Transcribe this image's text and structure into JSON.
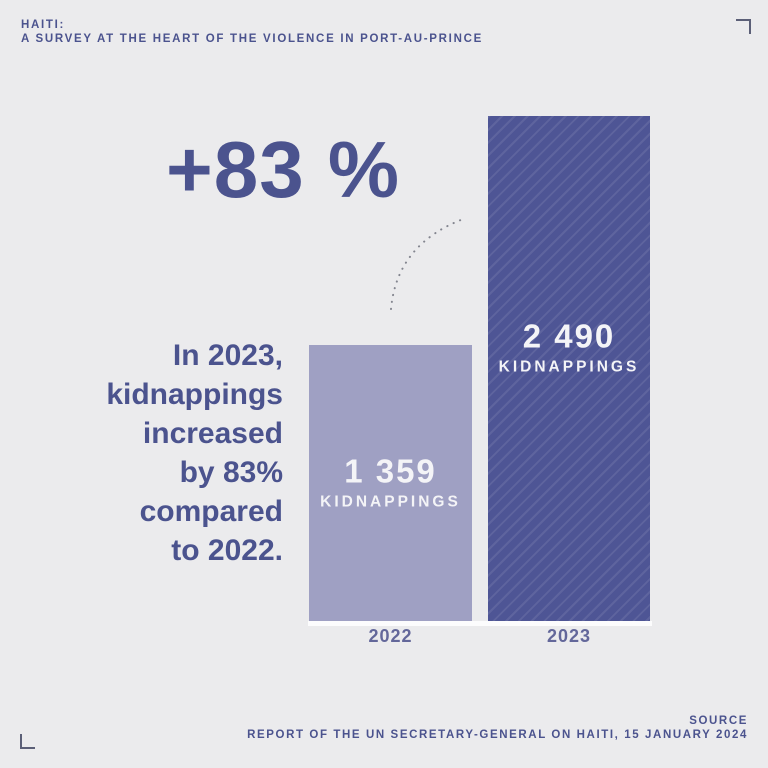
{
  "page": {
    "background_color": "#ebebed",
    "accent_color": "#4b538e"
  },
  "header": {
    "line1": "HAITI:",
    "line2": "A SURVEY AT THE HEART OF THE VIOLENCE IN PORT-AU-PRINCE"
  },
  "headline": {
    "percent": "+83 %"
  },
  "annotation": {
    "text": "In 2023,\nkidnappings\nincreased\nby 83%\ncompared\nto 2022."
  },
  "chart_data": {
    "type": "bar",
    "categories": [
      "2022",
      "2023"
    ],
    "values": [
      1359,
      2490
    ],
    "value_labels": [
      "1 359",
      "2 490"
    ],
    "unit_label": "KIDNAPPINGS",
    "bar_colors": [
      "#9fa0c3",
      "#4e5595"
    ],
    "bar_patterns": [
      "solid",
      "diagonal-stripes"
    ],
    "title": "+83 %",
    "xlabel": "",
    "ylabel": "",
    "ylim": [
      0,
      2490
    ],
    "grid": false,
    "legend": false,
    "annotations": [
      "In 2023, kidnappings increased by 83% compared to 2022."
    ]
  },
  "footer": {
    "source_label": "SOURCE",
    "source_text": "REPORT OF THE UN SECRETARY-GENERAL ON HAITI, 15 JANUARY 2024"
  }
}
